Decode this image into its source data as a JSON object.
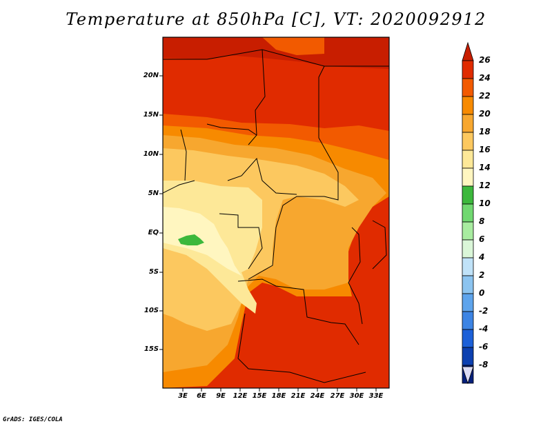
{
  "title": "Temperature at 850hPa [C], VT: 2020092912",
  "credit": "GrADS: IGES/COLA",
  "map": {
    "lat_labels": [
      "20N",
      "15N",
      "10N",
      "5N",
      "EQ",
      "5S",
      "10S",
      "15S"
    ],
    "lon_labels": [
      "3E",
      "6E",
      "9E",
      "12E",
      "15E",
      "18E",
      "21E",
      "24E",
      "27E",
      "30E",
      "33E"
    ]
  },
  "colorbar": {
    "labels": [
      "26",
      "24",
      "22",
      "20",
      "18",
      "16",
      "14",
      "12",
      "10",
      "8",
      "6",
      "4",
      "2",
      "0",
      "-2",
      "-4",
      "-6",
      "-8"
    ],
    "colors": [
      "#c81e00",
      "#e02b00",
      "#f25a00",
      "#f78a00",
      "#f7a72f",
      "#fcc85f",
      "#fde898",
      "#fff6c0",
      "#3cb83c",
      "#70d870",
      "#a8eca0",
      "#daf6d8",
      "#c0e2f8",
      "#8cc4f0",
      "#5ea4ec",
      "#3c84e4",
      "#1c60d8",
      "#0c40b0",
      "#06207c",
      "#dcdcf4"
    ]
  }
}
